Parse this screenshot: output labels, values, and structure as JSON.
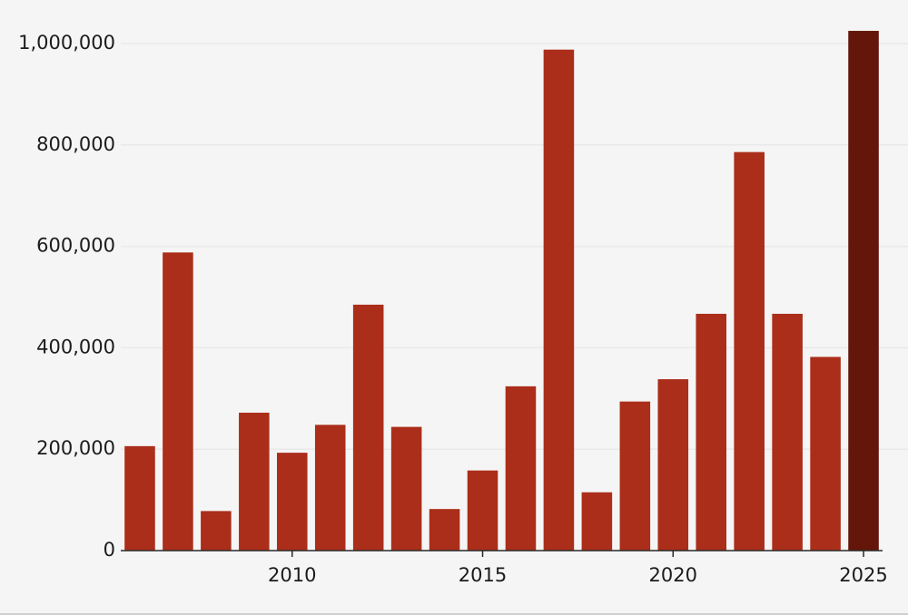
{
  "chart_data": {
    "type": "bar",
    "categories": [
      2006,
      2007,
      2008,
      2009,
      2010,
      2011,
      2012,
      2013,
      2014,
      2015,
      2016,
      2017,
      2018,
      2019,
      2020,
      2021,
      2022,
      2023,
      2024,
      2025
    ],
    "values": [
      206000,
      588000,
      78000,
      272000,
      193000,
      248000,
      485000,
      244000,
      82000,
      158000,
      324000,
      988000,
      115000,
      294000,
      338000,
      467000,
      786000,
      467000,
      382000,
      1025000
    ],
    "highlight_category": 2025,
    "colors": {
      "bar": "#ab2e1a",
      "highlight": "#64160a",
      "grid": "#e9e9e9",
      "axis": "#2a2a2a",
      "background": "#f5f5f5"
    },
    "title": "",
    "xlabel": "",
    "ylabel": "",
    "ylim": [
      0,
      1000000
    ],
    "yticks": [
      0,
      200000,
      400000,
      600000,
      800000,
      1000000
    ],
    "ytick_labels": [
      "0",
      "200,000",
      "400,000",
      "600,000",
      "800,000",
      "1,000,000"
    ],
    "xticks": [
      2010,
      2015,
      2020,
      2025
    ],
    "xtick_labels": [
      "2010",
      "2015",
      "2020",
      "2025"
    ],
    "grid": true,
    "legend": "none"
  }
}
